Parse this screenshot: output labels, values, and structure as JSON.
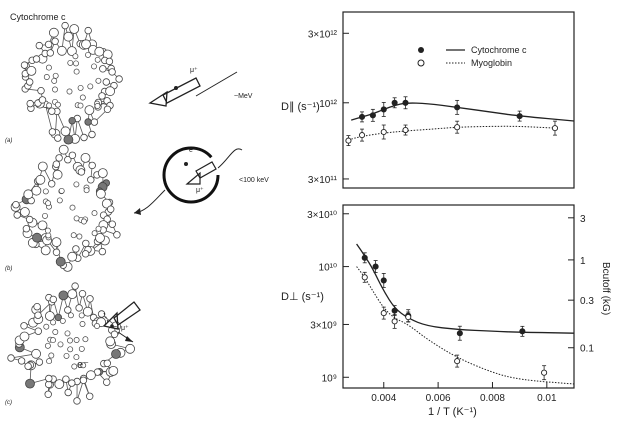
{
  "left_panel": {
    "title": "Cytochrome c",
    "panel_labels": [
      "(a)",
      "(b)",
      "(c)"
    ],
    "muon_label": "μ⁺",
    "muon_energy": "~MeV",
    "electron_label": "e⁻",
    "thermal_energy": "<100 keV",
    "electron_c": "e⁻"
  },
  "chart_data": [
    {
      "type": "line",
      "id": "top",
      "ylabel": "D∥ (s⁻¹)",
      "y_scale": "log",
      "ylim": [
        260000000000.0,
        4200000000000.0
      ],
      "xlim": [
        0.0025,
        0.011
      ],
      "yticks": [
        {
          "v": 3000000000000.0,
          "label": "3×10¹²"
        },
        {
          "v": 1000000000000.0,
          "label": "10¹²"
        },
        {
          "v": 300000000000.0,
          "label": "3×10¹¹"
        }
      ],
      "legend_position": "top-right",
      "series": [
        {
          "name": "Cytochrome c",
          "marker": "filled",
          "line": "solid",
          "x": [
            0.0032,
            0.0036,
            0.004,
            0.0044,
            0.0048,
            0.0067,
            0.009
          ],
          "y": [
            800000000000.0,
            820000000000.0,
            900000000000.0,
            1000000000000.0,
            1000000000000.0,
            930000000000.0,
            810000000000.0
          ]
        },
        {
          "name": "Myoglobin",
          "marker": "open",
          "line": "dotted",
          "x": [
            0.0027,
            0.0032,
            0.004,
            0.0048,
            0.0067,
            0.0103
          ],
          "y": [
            550000000000.0,
            600000000000.0,
            630000000000.0,
            650000000000.0,
            680000000000.0,
            670000000000.0
          ]
        }
      ],
      "curves": {
        "cyt": {
          "x": [
            0.0028,
            0.0032,
            0.0036,
            0.004,
            0.0044,
            0.0048,
            0.0056,
            0.0067,
            0.008,
            0.009,
            0.011
          ],
          "y": [
            760000000000.0,
            800000000000.0,
            840000000000.0,
            900000000000.0,
            960000000000.0,
            1000000000000.0,
            990000000000.0,
            930000000000.0,
            860000000000.0,
            810000000000.0,
            750000000000.0
          ]
        },
        "myo": {
          "x": [
            0.0026,
            0.0032,
            0.004,
            0.0048,
            0.0058,
            0.0067,
            0.008,
            0.009,
            0.0103
          ],
          "y": [
            550000000000.0,
            590000000000.0,
            620000000000.0,
            640000000000.0,
            660000000000.0,
            680000000000.0,
            690000000000.0,
            690000000000.0,
            670000000000.0
          ]
        }
      }
    },
    {
      "type": "line",
      "id": "bottom",
      "ylabel": "D⊥ (s⁻¹)",
      "xlabel": "1 / T (K⁻¹)",
      "y_scale": "log",
      "ylim": [
        800000000.0,
        36000000000.0
      ],
      "xlim": [
        0.0025,
        0.011
      ],
      "yticks": [
        {
          "v": 30000000000.0,
          "label": "3×10¹⁰"
        },
        {
          "v": 10000000000.0,
          "label": "10¹⁰"
        },
        {
          "v": 3000000000.0,
          "label": "3×10⁹"
        },
        {
          "v": 1000000000.0,
          "label": "10⁹"
        }
      ],
      "xticks": [
        {
          "v": 0.004,
          "label": "0.004"
        },
        {
          "v": 0.006,
          "label": "0.006"
        },
        {
          "v": 0.008,
          "label": "0.008"
        },
        {
          "v": 0.01,
          "label": "0.01"
        }
      ],
      "y2label": "Bcutoff (kG)",
      "y2ticks": [
        {
          "frac": 0.07,
          "label": "3"
        },
        {
          "frac": 0.3,
          "label": "1"
        },
        {
          "frac": 0.52,
          "label": "0.3"
        },
        {
          "frac": 0.78,
          "label": "0.1"
        }
      ],
      "series": [
        {
          "name": "Cytochrome c",
          "marker": "filled",
          "line": "solid",
          "x": [
            0.0033,
            0.0037,
            0.004,
            0.0044,
            0.0049,
            0.0068,
            0.0091
          ],
          "y": [
            12000000000.0,
            10000000000.0,
            7500000000.0,
            4000000000.0,
            3600000000.0,
            2500000000.0,
            2600000000.0
          ]
        },
        {
          "name": "Myoglobin",
          "marker": "open",
          "line": "dotted",
          "x": [
            0.0033,
            0.004,
            0.0044,
            0.0049,
            0.0067,
            0.0099
          ],
          "y": [
            8000000000.0,
            3800000000.0,
            3200000000.0,
            3500000000.0,
            1400000000.0,
            1100000000.0
          ]
        }
      ],
      "curves": {
        "cyt": {
          "x": [
            0.003,
            0.0033,
            0.0036,
            0.004,
            0.0044,
            0.0049,
            0.0056,
            0.0067,
            0.008,
            0.0091,
            0.011
          ],
          "y": [
            16000000000.0,
            12500000000.0,
            9500000000.0,
            6000000000.0,
            4200000000.0,
            3400000000.0,
            2900000000.0,
            2700000000.0,
            2600000000.0,
            2550000000.0,
            2500000000.0
          ]
        },
        "myo": {
          "x": [
            0.003,
            0.0033,
            0.0036,
            0.004,
            0.0044,
            0.0049,
            0.0056,
            0.0067,
            0.008,
            0.009,
            0.011
          ],
          "y": [
            10000000000.0,
            8000000000.0,
            6000000000.0,
            4200000000.0,
            3400000000.0,
            3000000000.0,
            2200000000.0,
            1500000000.0,
            1100000000.0,
            950000000.0,
            870000000.0
          ]
        }
      }
    }
  ]
}
